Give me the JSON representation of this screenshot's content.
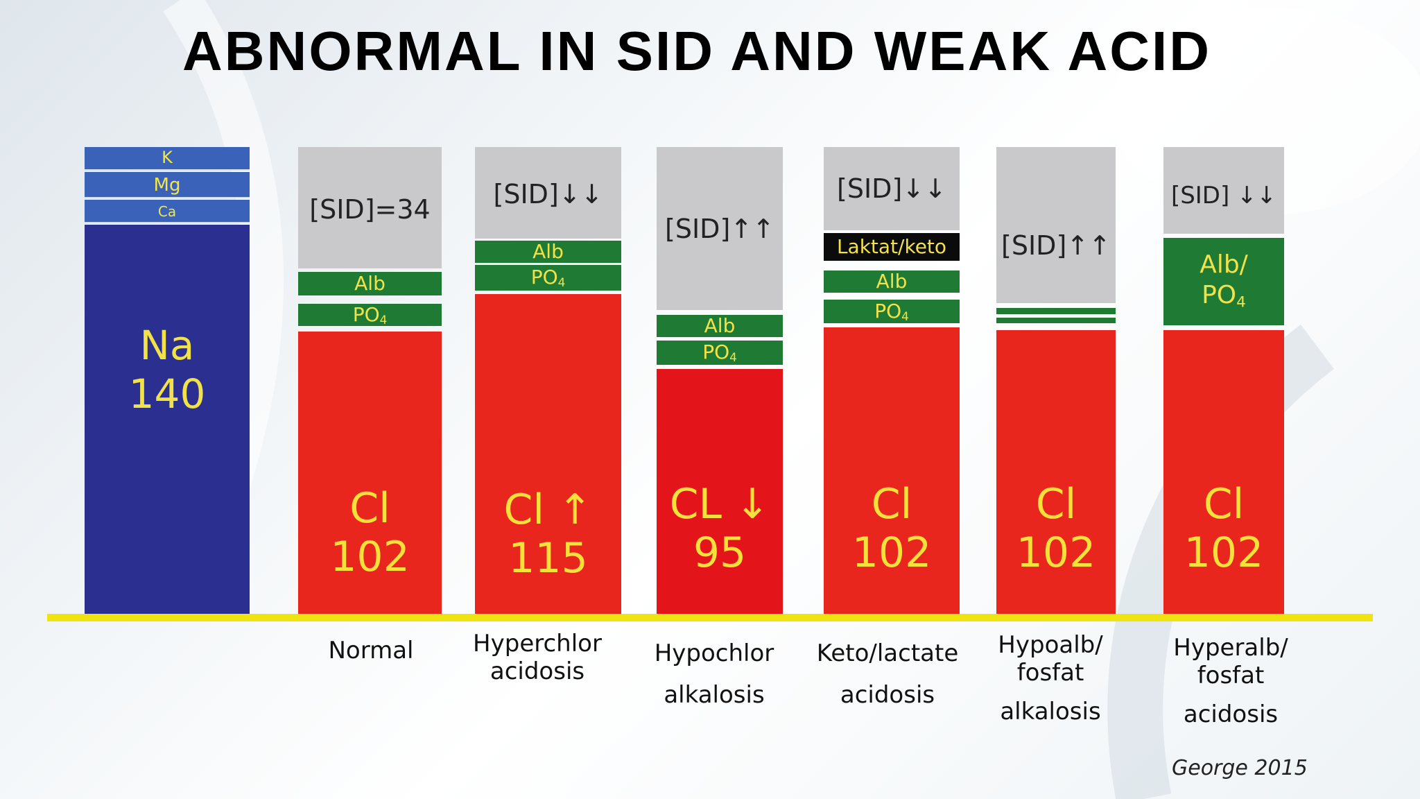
{
  "title": "ABNORMAL IN SID AND WEAK ACID",
  "cation_column": {
    "k": "K",
    "mg": "Mg",
    "ca": "Ca",
    "na_symbol": "Na",
    "na_value": "140"
  },
  "columns": [
    {
      "sid": "[SID]=34",
      "alb": "Alb",
      "po4": "PO",
      "cl_symbol": "Cl",
      "cl_value": "102",
      "label_line1": "Normal",
      "label_line2": ""
    },
    {
      "sid": "[SID]↓↓",
      "alb": "Alb",
      "po4": "PO",
      "cl_symbol": "Cl ↑",
      "cl_value": "115",
      "label_line1": "Hyperchlor",
      "label_line2": "acidosis"
    },
    {
      "sid": "[SID]↑↑",
      "alb": "Alb",
      "po4": "PO",
      "cl_symbol": "CL ↓",
      "cl_value": "95",
      "label_line1": "Hypochlor",
      "label_line2": "alkalosis"
    },
    {
      "sid": "[SID]↓↓",
      "extra": "Laktat/keto",
      "alb": "Alb",
      "po4": "PO",
      "cl_symbol": "Cl",
      "cl_value": "102",
      "label_line1": "Keto/lactate",
      "label_line2": "acidosis"
    },
    {
      "sid": "[SID]↑↑",
      "cl_symbol": "Cl",
      "cl_value": "102",
      "label_line1": "Hypoalb/",
      "label_line2": "fosfat",
      "label_line3": "alkalosis"
    },
    {
      "sid": "[SID] ↓↓",
      "alb_po4_line1": "Alb/",
      "alb_po4_line2": "PO",
      "cl_symbol": "Cl",
      "cl_value": "102",
      "label_line1": "Hyperalb/",
      "label_line2": "fosfat",
      "label_line3": "acidosis"
    }
  ],
  "subscript": "4",
  "credit": "George 2015",
  "colors": {
    "sodium": "#2b2f8f",
    "small_ions": "#3a62b8",
    "sid_gap": "#c9c9cb",
    "weak_acid": "#1f7a34",
    "chloride": "#e8261d",
    "label_text": "#f2e24a",
    "baseline": "#f0e312"
  }
}
